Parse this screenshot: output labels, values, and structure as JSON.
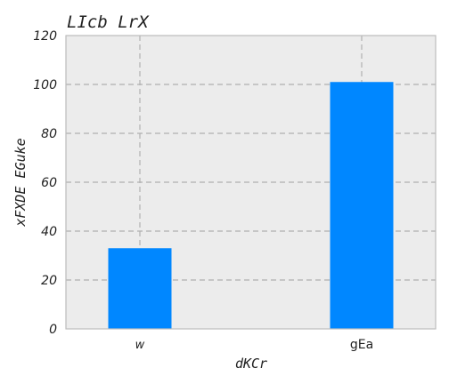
{
  "chart_data": {
    "type": "bar",
    "title": "LIcb LrX",
    "xlabel": "dKCr",
    "ylabel": "xFXDE  EGuke",
    "categories": [
      "w",
      "gEa"
    ],
    "values": [
      33,
      101
    ],
    "ylim": [
      0,
      120
    ],
    "yticks": [
      0,
      20,
      40,
      60,
      80,
      100,
      120
    ],
    "grid": true,
    "colors": {
      "bar": "#0087ff",
      "plot_background": "#ececec",
      "frame": "#bcbcbc",
      "grid": "#b0b0b0"
    }
  }
}
